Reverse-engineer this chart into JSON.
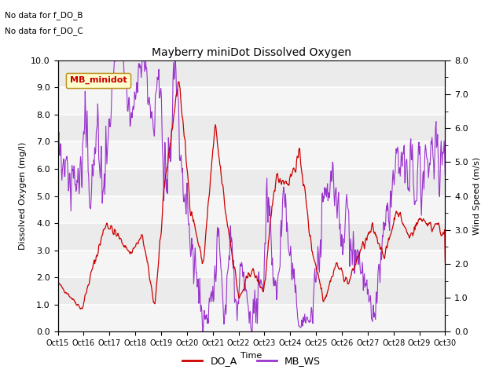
{
  "title": "Mayberry miniDot Dissolved Oxygen",
  "xlabel": "Time",
  "ylabel_left": "Dissolved Oxygen (mg/l)",
  "ylabel_right": "Wind Speed (m/s)",
  "annotation1": "No data for f_DO_B",
  "annotation2": "No data for f_DO_C",
  "legend_label": "MB_minidot",
  "ylim_left": [
    0.0,
    10.0
  ],
  "ylim_right": [
    0.0,
    8.0
  ],
  "yticks_left": [
    0.0,
    1.0,
    2.0,
    3.0,
    4.0,
    5.0,
    6.0,
    7.0,
    8.0,
    9.0,
    10.0
  ],
  "yticks_right": [
    0.0,
    1.0,
    2.0,
    3.0,
    4.0,
    5.0,
    6.0,
    7.0,
    8.0
  ],
  "xtick_labels": [
    "Oct 15",
    "Oct 16",
    "Oct 17",
    "Oct 18",
    "Oct 19",
    "Oct 20",
    "Oct 21",
    "Oct 22",
    "Oct 23",
    "Oct 24",
    "Oct 25",
    "Oct 26",
    "Oct 27",
    "Oct 28",
    "Oct 29",
    "Oct 30"
  ],
  "color_DO_A": "#cc0000",
  "color_MB_WS": "#9933cc",
  "legend_DO_A": "DO_A",
  "legend_MB_WS": "MB_WS",
  "bg_color": "#e8e8e8",
  "plot_bg_color": "#e8e8e8",
  "band_color_light": "#f0f0f0",
  "band_color_dark": "#e0e0e0"
}
